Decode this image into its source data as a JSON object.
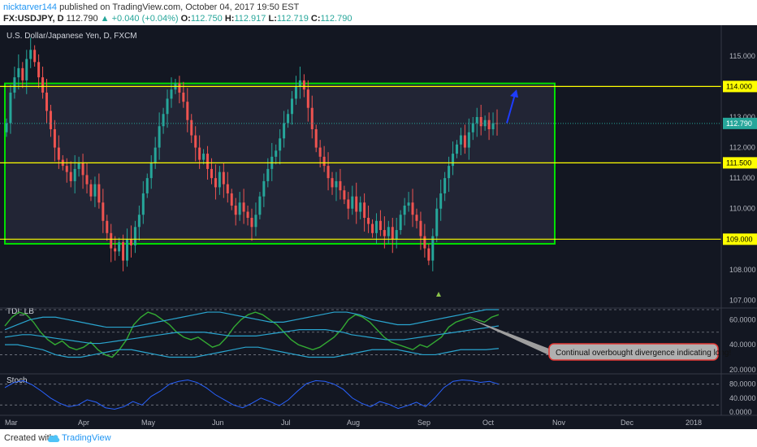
{
  "header": {
    "user": "nicktarver144",
    "published": " published on TradingView.com, October 04, 2017 19:50 EST",
    "symbol": "FX:USDJPY, D",
    "last": "112.790",
    "change": "▲ +0.040 (+0.04%)",
    "open_label": "O:",
    "open": "112.750",
    "high_label": "H:",
    "high": "112.917",
    "low_label": "L:",
    "low": "112.719",
    "close_label": "C:",
    "close": "112.790"
  },
  "footer": {
    "created_with": "Created with",
    "brand": "TradingView"
  },
  "colors": {
    "bg": "#131722",
    "up": "#26a69a",
    "down": "#ef5350",
    "level": "#ffff00",
    "box": "#00e000",
    "tdi_green": "#33aa33",
    "tdi_blue": "#2aa5cf",
    "stoch": "#2962ff"
  },
  "chart_data": [
    {
      "type": "candlestick",
      "title": "U.S. Dollar/Japanese Yen, D, FXCM",
      "ylim": [
        106.8,
        115.9
      ],
      "y_ticks": [
        "115.000",
        "114.000",
        "113.000",
        "112.000",
        "111.000",
        "110.000",
        "109.000",
        "108.000",
        "107.000"
      ],
      "x_ticks": [
        "Mar",
        "Apr",
        "May",
        "Jun",
        "Jul",
        "Aug",
        "Sep",
        "Oct",
        "Nov",
        "Dec",
        "2018"
      ],
      "horizontal_levels": [
        {
          "value": 114.0,
          "label": "114.000"
        },
        {
          "value": 111.5,
          "label": "111.500"
        },
        {
          "value": 109.0,
          "label": "109.000"
        }
      ],
      "last_price": {
        "value": 112.79,
        "label": "112.790"
      },
      "range_box": {
        "top": 114.1,
        "bottom": 108.85,
        "start": "Mar",
        "end": "Oct-end"
      },
      "closes": [
        112.8,
        113.8,
        114.3,
        114.6,
        114.2,
        114.9,
        115.2,
        114.8,
        114.3,
        113.8,
        113.2,
        112.6,
        112.0,
        111.6,
        111.4,
        111.2,
        110.9,
        111.3,
        111.5,
        111.1,
        110.8,
        110.4,
        110.8,
        110.2,
        109.6,
        109.2,
        108.7,
        108.6,
        108.9,
        108.3,
        109.0,
        108.8,
        109.4,
        109.8,
        110.5,
        111.0,
        111.5,
        112.0,
        112.7,
        113.1,
        113.6,
        113.9,
        114.1,
        113.8,
        113.5,
        112.9,
        112.4,
        112.0,
        111.6,
        111.8,
        111.3,
        111.0,
        110.7,
        111.2,
        110.8,
        110.5,
        110.1,
        109.8,
        110.2,
        109.9,
        109.7,
        109.4,
        109.8,
        110.4,
        110.9,
        111.3,
        111.7,
        111.9,
        112.3,
        112.8,
        113.1,
        113.6,
        114.0,
        114.2,
        113.9,
        113.3,
        112.6,
        112.0,
        111.7,
        111.4,
        111.0,
        110.7,
        110.9,
        110.6,
        110.3,
        110.0,
        110.4,
        109.9,
        110.2,
        109.7,
        109.5,
        109.2,
        109.6,
        109.3,
        109.1,
        109.4,
        109.0,
        109.3,
        109.8,
        110.1,
        110.2,
        109.8,
        109.6,
        109.1,
        108.7,
        108.3,
        109.1,
        110.0,
        110.5,
        111.0,
        111.4,
        111.8,
        112.1,
        112.4,
        112.0,
        112.5,
        112.8,
        113.0,
        112.7,
        112.9,
        112.6,
        112.8,
        112.79
      ],
      "target_arrow": {
        "from": 112.8,
        "to": 113.9,
        "color": "#1e3cff"
      },
      "marker": {
        "type": "triangle-up",
        "value": 107.2,
        "color": "#8bc34a"
      }
    },
    {
      "type": "line",
      "title": "TDI_LB",
      "ylim": [
        18,
        68
      ],
      "y_ticks": [
        "60.0000",
        "40.0000",
        "20.0000"
      ],
      "dashed_levels": [
        32,
        50,
        68
      ],
      "series": [
        {
          "role": "price",
          "color": "#33aa33",
          "values": [
            55,
            62,
            66,
            64,
            58,
            50,
            44,
            40,
            43,
            38,
            36,
            38,
            42,
            36,
            32,
            30,
            36,
            44,
            56,
            62,
            66,
            64,
            60,
            56,
            50,
            46,
            44,
            46,
            42,
            38,
            40,
            46,
            54,
            60,
            64,
            66,
            64,
            60,
            56,
            50,
            44,
            40,
            38,
            36,
            38,
            42,
            46,
            52,
            60,
            64,
            62,
            58,
            52,
            46,
            42,
            40,
            38,
            36,
            40,
            38,
            42,
            46,
            54,
            58,
            60,
            62,
            60,
            58,
            62,
            64
          ]
        },
        {
          "role": "signal",
          "color": "#2aa5cf",
          "values": [
            46,
            47,
            48,
            48,
            47,
            46,
            45,
            44,
            43,
            42,
            41,
            41,
            42,
            43,
            44,
            45,
            46,
            47,
            48,
            49,
            50,
            50,
            50,
            50,
            49,
            48,
            47,
            47,
            47,
            47,
            48,
            49,
            50,
            51,
            52,
            52,
            52,
            52,
            51,
            50,
            48,
            47,
            46,
            45,
            44,
            44,
            44,
            45,
            46,
            47,
            48,
            49,
            50,
            51,
            52,
            53,
            54,
            55
          ]
        },
        {
          "role": "upper-band",
          "color": "#2aa5cf",
          "values": [
            52,
            56,
            60,
            62,
            62,
            60,
            58,
            56,
            54,
            54,
            54,
            56,
            58,
            60,
            62,
            64,
            66,
            66,
            64,
            62,
            60,
            58,
            58,
            60,
            62,
            64,
            66,
            66,
            64,
            60,
            58,
            56,
            56,
            58,
            60,
            62,
            64,
            66,
            68,
            68
          ]
        },
        {
          "role": "lower-band",
          "color": "#2aa5cf",
          "values": [
            40,
            40,
            38,
            36,
            32,
            30,
            30,
            32,
            34,
            36,
            36,
            34,
            32,
            30,
            30,
            30,
            32,
            34,
            36,
            38,
            38,
            36,
            34,
            32,
            30,
            30,
            30,
            32,
            34,
            36,
            36,
            36,
            34,
            32,
            32,
            34,
            36,
            36,
            36,
            37
          ]
        }
      ],
      "annotation": "Continual overbought divergence indicating long!"
    },
    {
      "type": "line",
      "title": "Stoch",
      "ylim": [
        -5,
        105
      ],
      "y_ticks": [
        "80.0000",
        "40.0000",
        "0.0000"
      ],
      "dashed_levels": [
        20,
        80
      ],
      "series": [
        {
          "role": "k",
          "color": "#2962ff",
          "values": [
            70,
            85,
            90,
            78,
            60,
            40,
            25,
            15,
            20,
            35,
            28,
            12,
            8,
            15,
            30,
            20,
            45,
            60,
            80,
            88,
            92,
            85,
            70,
            50,
            35,
            20,
            12,
            25,
            40,
            30,
            18,
            35,
            60,
            82,
            90,
            88,
            80,
            65,
            40,
            25,
            15,
            30,
            22,
            10,
            18,
            28,
            15,
            40,
            70,
            88,
            92,
            90,
            85,
            88,
            80
          ]
        }
      ]
    }
  ]
}
